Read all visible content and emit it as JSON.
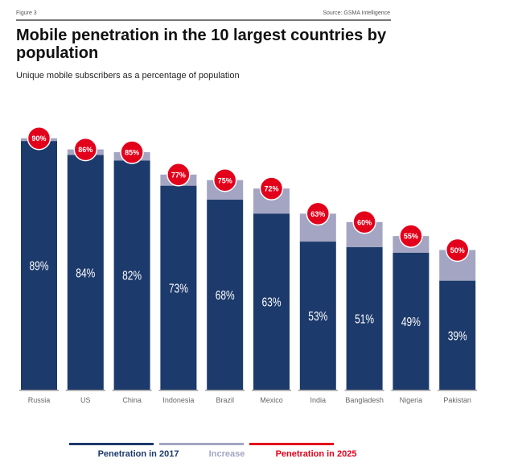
{
  "header": {
    "figure": "Figure 3",
    "source": "Source: GSMA Intelligence"
  },
  "chart_data": {
    "type": "bar",
    "title": "Mobile penetration in the 10 largest countries by population",
    "subtitle": "Unique mobile subscribers as a percentage of population",
    "categories": [
      "Russia",
      "US",
      "China",
      "Indonesia",
      "Brazil",
      "Mexico",
      "India",
      "Bangladesh",
      "Nigeria",
      "Pakistan"
    ],
    "series": [
      {
        "name": "Penetration in 2017",
        "values": [
          89,
          84,
          82,
          73,
          68,
          63,
          53,
          51,
          49,
          39
        ],
        "color": "#1c3a6b"
      },
      {
        "name": "Increase",
        "values": [
          1,
          2,
          3,
          4,
          7,
          9,
          10,
          9,
          6,
          11
        ],
        "color": "#a3a5c2"
      },
      {
        "name": "Penetration in 2025",
        "values": [
          90,
          86,
          85,
          77,
          75,
          72,
          63,
          60,
          55,
          50
        ],
        "color": "#e3001b"
      }
    ],
    "value_labels_2017": [
      "89%",
      "84%",
      "82%",
      "73%",
      "68%",
      "63%",
      "53%",
      "51%",
      "49%",
      "39%"
    ],
    "value_labels_2025": [
      "90%",
      "86%",
      "85%",
      "77%",
      "75%",
      "72%",
      "63%",
      "60%",
      "55%",
      "50%"
    ],
    "ylim": [
      0,
      100
    ],
    "legend_position": "bottom"
  }
}
